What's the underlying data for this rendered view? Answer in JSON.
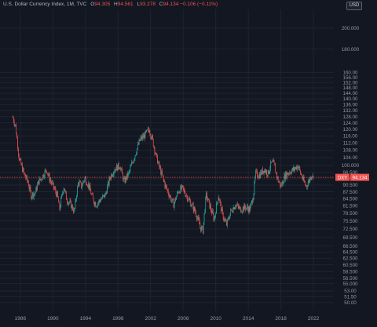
{
  "header": {
    "symbol_title": "U.S. Dollar Currency Index, 1M, TVC",
    "open_key": "O",
    "open_val": "94.305",
    "high_key": "H",
    "high_val": "94.561",
    "low_key": "L",
    "low_val": "93.278",
    "close_key": "C",
    "close_val": "94.134",
    "change": "−0.106 (−0.11%)",
    "currency": "USD"
  },
  "colors": {
    "background": "#131722",
    "grid": "#1f2430",
    "up": "#26a69a",
    "down": "#ef5350",
    "axis_text": "#9598a1",
    "price_line": "#ef5350"
  },
  "price_label": {
    "symbol": "DXY",
    "value": "94.134"
  },
  "chart_data": {
    "type": "candlestick",
    "title": "U.S. Dollar Currency Index, 1M, TVC",
    "y_scale": "log",
    "ylim": [
      48,
      220
    ],
    "xlim": [
      1983.5,
      2024.5
    ],
    "grid": true,
    "y_ticks": [
      50,
      51.5,
      53,
      55,
      56.5,
      58.5,
      60.5,
      62.5,
      64.5,
      66.5,
      69.5,
      72.5,
      75.5,
      78.5,
      81.5,
      84.5,
      87.5,
      90.5,
      93.5,
      96.5,
      100,
      104,
      108,
      112,
      116,
      120,
      124,
      128,
      132,
      136,
      140,
      144,
      148,
      152,
      156,
      160,
      180,
      200
    ],
    "y_tick_labels": [
      "50.00",
      "51.50",
      "53.00",
      "55.00",
      "56.50",
      "58.50",
      "60.50",
      "62.50",
      "64.50",
      "66.50",
      "69.50",
      "72.50",
      "75.50",
      "78.50",
      "81.50",
      "84.50",
      "87.50",
      "90.50",
      "93.50",
      "96.50",
      "100.00",
      "104.00",
      "108.00",
      "112.00",
      "116.00",
      "120.00",
      "124.00",
      "128.00",
      "132.00",
      "136.00",
      "140.00",
      "144.00",
      "148.00",
      "152.00",
      "156.00",
      "160.00",
      "180.00",
      "200.00"
    ],
    "y_tick_display": [
      "50.00",
      "51.50",
      "53.00",
      "55.000",
      "56.500",
      "58.500",
      "60.500",
      "62.500",
      "64.500",
      "66.500",
      "69.500",
      "72.500",
      "75.500",
      "78.500",
      "81.500",
      "84.500",
      "87.500",
      "90.500",
      "93.500",
      "96.500",
      "100.000",
      "104.00",
      "108.00",
      "112.00",
      "116.00",
      "120.00",
      "124.00",
      "128.00",
      "132.00",
      "136.00",
      "140.00",
      "144.00",
      "148.00",
      "152.00",
      "156.00",
      "160.00",
      "180.000",
      "200.000"
    ],
    "x_ticks": [
      1986,
      1990,
      1994,
      1998,
      2002,
      2006,
      2010,
      2014,
      2018,
      2022
    ],
    "x_tick_labels": [
      "1986",
      "1990",
      "1994",
      "1998",
      "2002",
      "2006",
      "2010",
      "2014",
      "2018",
      "2022"
    ],
    "path": [
      [
        1985.1,
        128
      ],
      [
        1985.5,
        122
      ],
      [
        1985.9,
        104
      ],
      [
        1986.5,
        96
      ],
      [
        1987.0,
        92
      ],
      [
        1987.4,
        86
      ],
      [
        1987.9,
        87
      ],
      [
        1988.3,
        92
      ],
      [
        1988.7,
        94
      ],
      [
        1989.3,
        98
      ],
      [
        1989.6,
        94
      ],
      [
        1990.1,
        90
      ],
      [
        1990.6,
        86
      ],
      [
        1990.9,
        80
      ],
      [
        1991.4,
        90
      ],
      [
        1991.8,
        84
      ],
      [
        1992.3,
        82
      ],
      [
        1992.7,
        79
      ],
      [
        1993.2,
        92
      ],
      [
        1993.6,
        90
      ],
      [
        1994.0,
        94
      ],
      [
        1994.5,
        90
      ],
      [
        1995.0,
        84
      ],
      [
        1995.4,
        82
      ],
      [
        1995.9,
        84
      ],
      [
        1996.5,
        86
      ],
      [
        1997.1,
        94
      ],
      [
        1997.6,
        98
      ],
      [
        1998.3,
        100
      ],
      [
        1998.8,
        92
      ],
      [
        1999.4,
        96
      ],
      [
        2000.2,
        106
      ],
      [
        2000.8,
        114
      ],
      [
        2001.3,
        116
      ],
      [
        2001.9,
        120
      ],
      [
        2002.3,
        114
      ],
      [
        2002.8,
        104
      ],
      [
        2003.4,
        96
      ],
      [
        2003.9,
        90
      ],
      [
        2004.4,
        86
      ],
      [
        2004.9,
        82
      ],
      [
        2005.5,
        88
      ],
      [
        2006.0,
        89
      ],
      [
        2006.6,
        85
      ],
      [
        2007.1,
        82
      ],
      [
        2007.6,
        79
      ],
      [
        2008.2,
        73
      ],
      [
        2008.5,
        72
      ],
      [
        2008.9,
        86
      ],
      [
        2009.3,
        82
      ],
      [
        2009.9,
        76
      ],
      [
        2010.4,
        86
      ],
      [
        2010.9,
        78
      ],
      [
        2011.4,
        74
      ],
      [
        2011.9,
        79
      ],
      [
        2012.5,
        82
      ],
      [
        2013.1,
        80
      ],
      [
        2013.7,
        81
      ],
      [
        2014.3,
        80
      ],
      [
        2014.7,
        86
      ],
      [
        2015.0,
        96
      ],
      [
        2015.4,
        95
      ],
      [
        2016.0,
        98
      ],
      [
        2016.5,
        96
      ],
      [
        2016.9,
        101
      ],
      [
        2017.2,
        101
      ],
      [
        2017.7,
        93
      ],
      [
        2018.1,
        90
      ],
      [
        2018.6,
        95
      ],
      [
        2019.2,
        97
      ],
      [
        2019.7,
        98
      ],
      [
        2020.2,
        100
      ],
      [
        2020.5,
        96
      ],
      [
        2020.9,
        92
      ],
      [
        2021.2,
        90
      ],
      [
        2021.6,
        93
      ],
      [
        2021.9,
        96
      ],
      [
        2022.0,
        94.134
      ]
    ],
    "last": {
      "open": 94.305,
      "high": 94.561,
      "low": 93.278,
      "close": 94.134
    }
  }
}
